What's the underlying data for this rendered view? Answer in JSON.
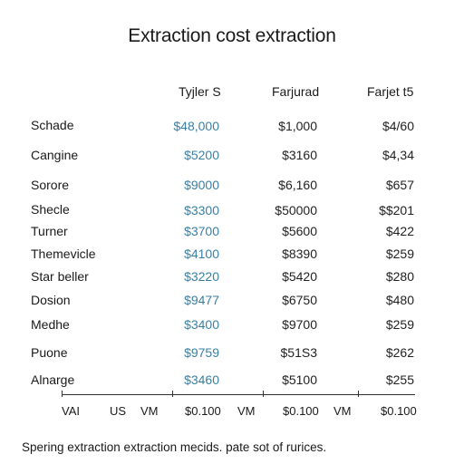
{
  "title": "Extraction cost extraction",
  "headers": [
    "Tyjler S",
    "Farjurad",
    "Farjet t5"
  ],
  "rows": [
    {
      "label": "Schade",
      "values": [
        "$48,000",
        "$1,000",
        "$4/60"
      ]
    },
    {
      "label": "Cangine",
      "values": [
        "$5200",
        "$3160",
        "$4,34"
      ]
    },
    {
      "label": "Sorore",
      "values": [
        "$9000",
        "$6,160",
        "$657"
      ]
    },
    {
      "label": "Shecle",
      "values": [
        "$3300",
        "$50000",
        "$$201"
      ]
    },
    {
      "label": "Turner",
      "values": [
        "$3700",
        "$5600",
        "$422"
      ]
    },
    {
      "label": "Themevicle",
      "values": [
        "$4100",
        "$8390",
        "$259"
      ]
    },
    {
      "label": "Star beller",
      "values": [
        "$3220",
        "$5420",
        "$280"
      ]
    },
    {
      "label": "Dosion",
      "values": [
        "$9477",
        "$6750",
        "$480"
      ]
    },
    {
      "label": "Medhe",
      "values": [
        "$3400",
        "$9700",
        "$259"
      ]
    },
    {
      "label": "Puone",
      "values": [
        "$9759",
        "$51S3",
        "$262"
      ]
    },
    {
      "label": "Alnarge",
      "values": [
        "$3460",
        "$5100",
        "$255"
      ]
    }
  ],
  "footer": [
    "VAI",
    "US",
    "VM",
    "$0.100",
    "VM",
    "$0.100",
    "VM",
    "$0.100"
  ],
  "note": "Spering extraction extraction mecids. pate sot of rurices."
}
